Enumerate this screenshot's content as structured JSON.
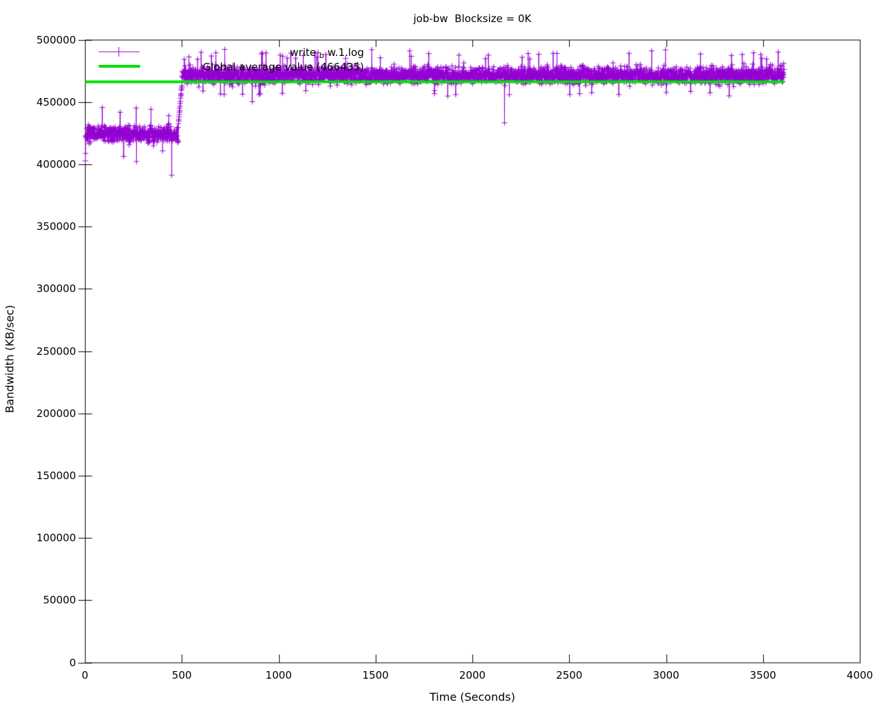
{
  "chart_data": {
    "type": "scatter",
    "title": "job-bw  Blocksize = 0K",
    "xlabel": "Time (Seconds)",
    "ylabel": "Bandwidth (KB/sec)",
    "xlim": [
      0,
      4000
    ],
    "ylim": [
      0,
      500000
    ],
    "xticks": [
      0,
      500,
      1000,
      1500,
      2000,
      2500,
      3000,
      3500,
      4000
    ],
    "yticks": [
      0,
      50000,
      100000,
      150000,
      200000,
      250000,
      300000,
      350000,
      400000,
      450000,
      500000
    ],
    "grid": false,
    "background": "#ffffff",
    "border_color": "#000000",
    "legend": {
      "position": "top-left-inside",
      "entries": [
        {
          "label": "write_bw.1.log",
          "label_parts": {
            "pre": "write ",
            "sub": "b",
            "post": " w.1.log"
          },
          "style": "linespoints",
          "marker": "plus",
          "color": "#9400D3"
        },
        {
          "label": "Global average value (466435)",
          "style": "thick-line",
          "color": "#00E000"
        }
      ]
    },
    "series": [
      {
        "name": "write_bw.1.log",
        "style": "linespoints",
        "marker": "plus",
        "color": "#9400D3",
        "point_interval_seconds": 1,
        "start_points": [
          [
            0,
            403000
          ],
          [
            1,
            409000
          ]
        ],
        "segments": [
          {
            "t_start": 2,
            "t_end": 480,
            "mean": 424500,
            "noise_half_range": 11000,
            "band_min": 412500,
            "band_max": 438500,
            "spike_high_max": 446000,
            "spike_low_min": 406000
          },
          {
            "t_start": 481,
            "t_end": 499,
            "ramp_from": 433000,
            "ramp_to": 465000,
            "ramp_noise": 3500
          },
          {
            "t_start": 500,
            "t_end": 3607,
            "mean": 471800,
            "noise_half_range": 11500,
            "band_min": 459500,
            "band_max": 484500,
            "spike_high_max": 492500,
            "spike_low_min": 455000
          }
        ],
        "outliers": [
          [
            264,
            402500
          ],
          [
            446,
            391500
          ],
          [
            862,
            450500
          ],
          [
            2164,
            433600
          ]
        ]
      },
      {
        "name": "Global average value (466435)",
        "style": "hline",
        "color": "#00E000",
        "value": 466435,
        "x_start": 0,
        "x_end": 3608,
        "line_width": 4
      }
    ]
  }
}
